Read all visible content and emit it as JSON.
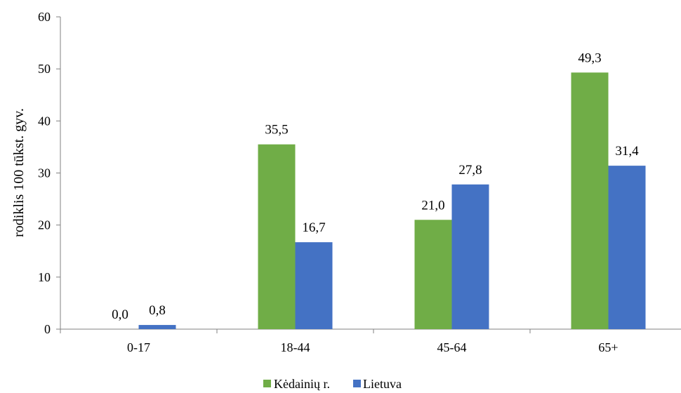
{
  "chart_data": {
    "type": "bar",
    "title": "",
    "xlabel": "",
    "ylabel": "rodiklis 100 tūkst. gyv.",
    "ylim": [
      0,
      60
    ],
    "yticks": [
      "0",
      "10",
      "20",
      "30",
      "40",
      "50",
      "60"
    ],
    "categories": [
      "0-17",
      "18-44",
      "45-64",
      "65+"
    ],
    "series": [
      {
        "name": "Kėdainių r.",
        "color": "#70ad47",
        "values": [
          0.0,
          35.5,
          21.0,
          49.3
        ],
        "labels": [
          "0,0",
          "35,5",
          "21,0",
          "49,3"
        ]
      },
      {
        "name": "Lietuva",
        "color": "#4472c4",
        "values": [
          0.8,
          16.7,
          27.8,
          31.4
        ],
        "labels": [
          "0,8",
          "16,7",
          "27,8",
          "31,4"
        ]
      }
    ],
    "grid": false,
    "legend": "bottom"
  }
}
